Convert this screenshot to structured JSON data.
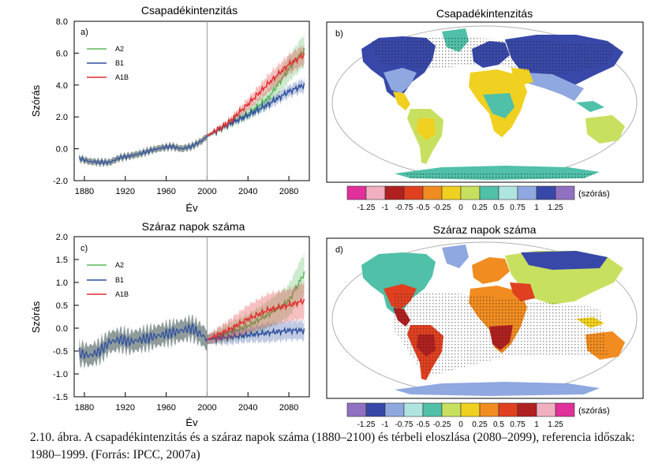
{
  "caption": "2.10. ábra. A csapadékintenzitás és a száraz napok száma (1880–2100) és térbeli eloszlása (2080–2099), referencia időszak: 1980–1999. (Forrás: IPCC, 2007a)",
  "series_colors": {
    "A2": "#5cb85c",
    "B1": "#2e4f9e",
    "A1B": "#e03030",
    "history": "#6b7b7b"
  },
  "chart_data": [
    {
      "type": "line",
      "panel": "a)",
      "title": "Csapadékintenzitás",
      "xlabel": "Év",
      "ylabel": "Szórás",
      "xlim": [
        1870,
        2100
      ],
      "ylim": [
        -2.0,
        8.0
      ],
      "xticks": [
        1880,
        1920,
        1960,
        2000,
        2040,
        2080
      ],
      "xtick_labels": [
        "1880",
        "1920",
        "1960",
        "2000",
        "2040",
        "2080"
      ],
      "yticks": [
        -2,
        0,
        2,
        4,
        6,
        8
      ],
      "ytick_labels": [
        "-2.0",
        "0.0",
        "2.0",
        "4.0",
        "6.0",
        "8.0"
      ],
      "vline": 2000,
      "legend": [
        "A2",
        "B1",
        "A1B"
      ],
      "history": {
        "x": [
          1875,
          1885,
          1895,
          1905,
          1915,
          1925,
          1935,
          1945,
          1955,
          1965,
          1975,
          1985,
          1995,
          2000
        ],
        "y": [
          -0.6,
          -0.8,
          -0.85,
          -0.85,
          -0.55,
          -0.45,
          -0.3,
          -0.1,
          0.05,
          0.15,
          0.0,
          0.15,
          0.5,
          0.8
        ],
        "spread": 0.2
      },
      "series": [
        {
          "name": "A2",
          "x": [
            2000,
            2020,
            2040,
            2060,
            2080,
            2095
          ],
          "y": [
            0.8,
            1.5,
            2.2,
            3.2,
            5.0,
            6.2
          ],
          "spread": [
            0.1,
            0.25,
            0.35,
            0.6,
            0.8,
            1.0
          ]
        },
        {
          "name": "B1",
          "x": [
            2000,
            2020,
            2040,
            2060,
            2080,
            2095
          ],
          "y": [
            0.8,
            1.5,
            2.1,
            2.8,
            3.6,
            4.0
          ],
          "spread": [
            0.1,
            0.15,
            0.2,
            0.3,
            0.35,
            0.4
          ]
        },
        {
          "name": "A1B",
          "x": [
            2000,
            2020,
            2040,
            2060,
            2080,
            2095
          ],
          "y": [
            0.8,
            1.6,
            2.8,
            4.1,
            5.3,
            5.9
          ],
          "spread": [
            0.1,
            0.2,
            0.35,
            0.55,
            0.6,
            0.6
          ]
        }
      ]
    },
    {
      "type": "line",
      "panel": "c)",
      "title": "Száraz napok száma",
      "xlabel": "Év",
      "ylabel": "Szórás",
      "xlim": [
        1870,
        2100
      ],
      "ylim": [
        -1.5,
        2.0
      ],
      "xticks": [
        1880,
        1920,
        1960,
        2000,
        2040,
        2080
      ],
      "xtick_labels": [
        "1880",
        "1920",
        "1960",
        "2000",
        "2040",
        "2080"
      ],
      "yticks": [
        -1.5,
        -1.0,
        -0.5,
        0.0,
        0.5,
        1.0,
        1.5,
        2.0
      ],
      "ytick_labels": [
        "-1.5",
        "-1.0",
        "-0.5",
        "0.0",
        "0.5",
        "1.0",
        "1.5",
        "2.0"
      ],
      "vline": 2000,
      "legend": [
        "A2",
        "B1",
        "A1B"
      ],
      "history": {
        "x": [
          1875,
          1885,
          1895,
          1905,
          1915,
          1925,
          1935,
          1945,
          1955,
          1965,
          1975,
          1985,
          1995,
          2000
        ],
        "y": [
          -0.55,
          -0.6,
          -0.5,
          -0.3,
          -0.25,
          -0.3,
          -0.25,
          -0.2,
          -0.15,
          -0.1,
          -0.05,
          0.0,
          -0.15,
          -0.25
        ],
        "spread": 0.22
      },
      "series": [
        {
          "name": "A2",
          "x": [
            2000,
            2020,
            2040,
            2060,
            2080,
            2095
          ],
          "y": [
            -0.25,
            -0.1,
            0.05,
            0.3,
            0.6,
            1.2
          ],
          "spread": [
            0.1,
            0.2,
            0.25,
            0.3,
            0.35,
            0.45
          ]
        },
        {
          "name": "B1",
          "x": [
            2000,
            2020,
            2040,
            2060,
            2080,
            2095
          ],
          "y": [
            -0.25,
            -0.2,
            -0.15,
            -0.1,
            -0.05,
            -0.05
          ],
          "spread": [
            0.1,
            0.15,
            0.15,
            0.2,
            0.2,
            0.2
          ]
        },
        {
          "name": "A1B",
          "x": [
            2000,
            2020,
            2040,
            2060,
            2080,
            2095
          ],
          "y": [
            -0.25,
            -0.05,
            0.2,
            0.4,
            0.5,
            0.6
          ],
          "spread": [
            0.1,
            0.2,
            0.3,
            0.35,
            0.35,
            0.4
          ]
        }
      ]
    },
    {
      "type": "heatmap",
      "panel": "b)",
      "title": "Csapadékintenzitás",
      "colorbar_unit": "(szórás)",
      "colorbar_colors": [
        "#e0309a",
        "#f0b0c0",
        "#b02020",
        "#e04020",
        "#f08c20",
        "#f0d020",
        "#c8e060",
        "#50c0a8",
        "#b0e4e0",
        "#90a8e0",
        "#3848a8",
        "#9070c0"
      ],
      "colorbar_labels": [
        "-1.25",
        "-1",
        "-0.75",
        "-0.5",
        "-0.25",
        "0",
        "0.25",
        "0.5",
        "0.75",
        "1",
        "1.25"
      ]
    },
    {
      "type": "heatmap",
      "panel": "d)",
      "title": "Száraz napok száma",
      "colorbar_unit": "(szórás)",
      "colorbar_colors": [
        "#9070c0",
        "#3848a8",
        "#90a8e0",
        "#b0e4e0",
        "#50c0a8",
        "#c8e060",
        "#f0d020",
        "#f08c20",
        "#e04020",
        "#b02020",
        "#f0b0c0",
        "#e0309a"
      ],
      "colorbar_labels": [
        "-1.25",
        "-1",
        "-0.75",
        "-0.5",
        "-0.25",
        "0",
        "0.25",
        "0.5",
        "0.75",
        "1",
        "1.25"
      ]
    }
  ]
}
